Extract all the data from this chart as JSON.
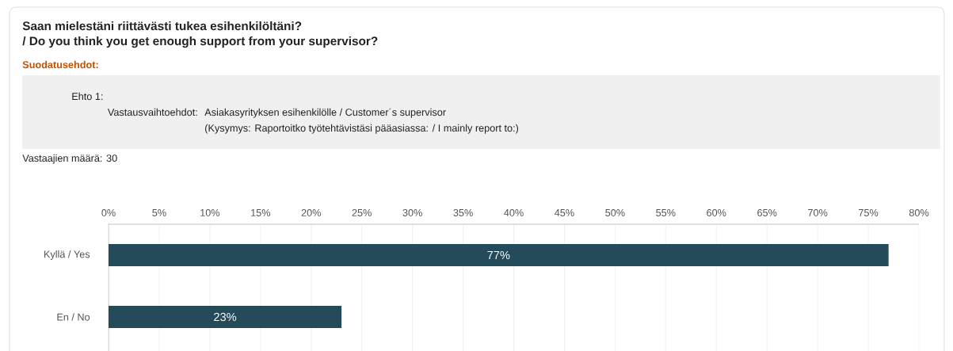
{
  "chart_data": {
    "type": "bar",
    "orientation": "horizontal",
    "title": "Saan mielestäni riittävästi tukea esihenkilöltäni?",
    "subtitle": "/ Do you think you get enough support from your supervisor?",
    "annotations": [
      "Suodatusehdot:",
      "Ehto 1:",
      "Vastausvaihtoehdot:",
      "Asiakasyrityksen esihenkilölle / Customer´s supervisor",
      "(Kysymys: Raportoitko työtehtävistäsi pääasiassa: / I mainly report to:)",
      "Vastaajien määrä: 30"
    ],
    "categories": [
      "Kyllä / Yes",
      "En / No"
    ],
    "values": [
      77,
      23
    ],
    "value_labels": [
      "77%",
      "23%"
    ],
    "color": "#234b5a",
    "xlim": [
      0,
      80
    ],
    "xticks": [
      {
        "value": 0,
        "label": "0%"
      },
      {
        "value": 5,
        "label": "5%"
      },
      {
        "value": 10,
        "label": "10%"
      },
      {
        "value": 15,
        "label": "15%"
      },
      {
        "value": 20,
        "label": "20%"
      },
      {
        "value": 25,
        "label": "25%"
      },
      {
        "value": 30,
        "label": "30%"
      },
      {
        "value": 35,
        "label": "35%"
      },
      {
        "value": 40,
        "label": "40%"
      },
      {
        "value": 45,
        "label": "45%"
      },
      {
        "value": 50,
        "label": "50%"
      },
      {
        "value": 55,
        "label": "55%"
      },
      {
        "value": 60,
        "label": "60%"
      },
      {
        "value": 65,
        "label": "65%"
      },
      {
        "value": 70,
        "label": "70%"
      },
      {
        "value": 75,
        "label": "75%"
      },
      {
        "value": 80,
        "label": "80%"
      }
    ],
    "grid": "x"
  }
}
